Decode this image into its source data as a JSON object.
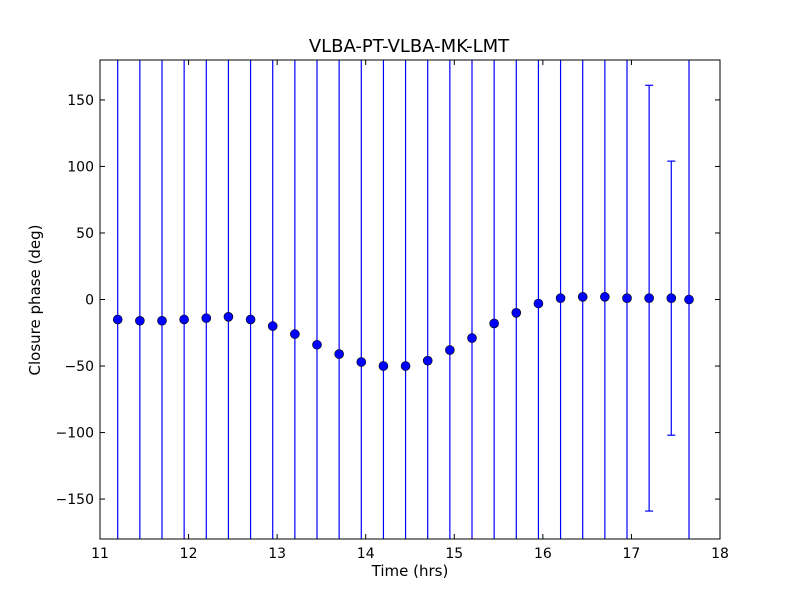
{
  "chart_data": {
    "type": "scatter",
    "title": "VLBA-PT-VLBA-MK-LMT",
    "xlabel": "Time (hrs)",
    "ylabel": "Closure phase (deg)",
    "xlim": [
      11,
      18
    ],
    "ylim": [
      -180,
      180
    ],
    "xticks": [
      11,
      12,
      13,
      14,
      15,
      16,
      17,
      18
    ],
    "yticks": [
      -150,
      -100,
      -50,
      0,
      50,
      100,
      150
    ],
    "grid": false,
    "marker_color": "#0000ff",
    "errorbar_color": "#0000ff",
    "series": [
      {
        "x": [
          11.2,
          11.45,
          11.7,
          11.95,
          12.2,
          12.45,
          12.7,
          12.95,
          13.2,
          13.45,
          13.7,
          13.95,
          14.2,
          14.45,
          14.7,
          14.95,
          15.2,
          15.45,
          15.7,
          15.95,
          16.2,
          16.45,
          16.7,
          16.95,
          17.2,
          17.45,
          17.65
        ],
        "y": [
          -15,
          -16,
          -16,
          -15,
          -14,
          -13,
          -15,
          -20,
          -26,
          -34,
          -41,
          -47,
          -50,
          -50,
          -46,
          -38,
          -29,
          -18,
          -10,
          -3,
          1,
          2,
          2,
          1,
          1,
          1,
          0
        ],
        "yerr_low": [
          -999,
          -999,
          -999,
          -999,
          -999,
          -999,
          -999,
          -999,
          -999,
          -999,
          -999,
          -999,
          -999,
          -999,
          -999,
          -999,
          -999,
          -999,
          -999,
          -999,
          -999,
          -999,
          -999,
          -999,
          -159,
          -102,
          -999
        ],
        "yerr_high": [
          999,
          999,
          999,
          999,
          999,
          999,
          999,
          999,
          999,
          999,
          999,
          999,
          999,
          999,
          999,
          999,
          999,
          999,
          999,
          999,
          999,
          999,
          999,
          999,
          161,
          104,
          999
        ]
      }
    ]
  }
}
